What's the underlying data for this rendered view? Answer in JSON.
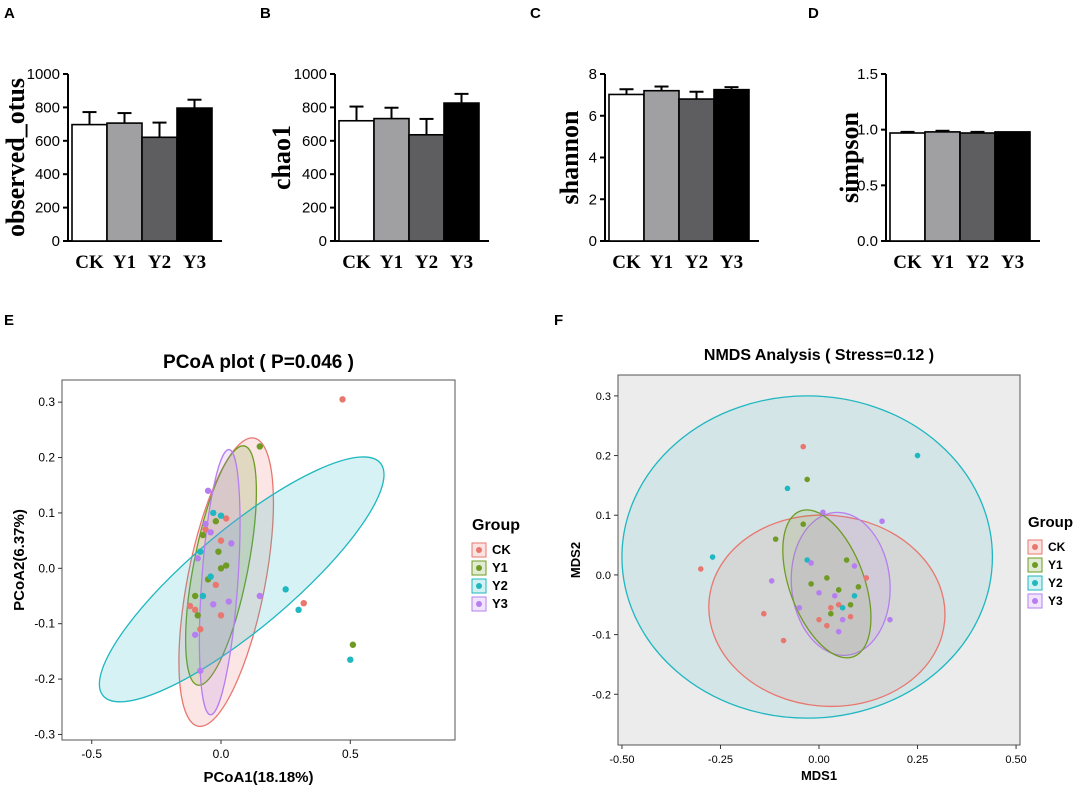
{
  "colors": {
    "CK": "#e8776f",
    "Y1": "#6f9b24",
    "Y2": "#1fb7c0",
    "Y3": "#b67ef0"
  },
  "chart_data": [
    {
      "panel": "A",
      "type": "bar",
      "ylabel": "observed_otus",
      "categories": [
        "CK",
        "Y1",
        "Y2",
        "Y3"
      ],
      "values": [
        697,
        706,
        621,
        796
      ],
      "errors": [
        75,
        60,
        88,
        50
      ],
      "fills": [
        "#ffffff",
        "#a0a0a2",
        "#5e5e60",
        "#000000"
      ],
      "ylim": [
        0,
        1000
      ],
      "yticks": [
        0,
        200,
        400,
        600,
        800,
        1000
      ],
      "yticklabels": [
        "0",
        "200",
        "400",
        "600",
        "800",
        "1000"
      ]
    },
    {
      "panel": "B",
      "type": "bar",
      "ylabel": "chao1",
      "categories": [
        "CK",
        "Y1",
        "Y2",
        "Y3"
      ],
      "values": [
        720,
        733,
        636,
        826
      ],
      "errors": [
        85,
        65,
        95,
        55
      ],
      "fills": [
        "#ffffff",
        "#a0a0a2",
        "#5e5e60",
        "#000000"
      ],
      "ylim": [
        0,
        1000
      ],
      "yticks": [
        0,
        200,
        400,
        600,
        800,
        1000
      ],
      "yticklabels": [
        "0",
        "200",
        "400",
        "600",
        "800",
        "1000"
      ]
    },
    {
      "panel": "C",
      "type": "bar",
      "ylabel": "shannon",
      "categories": [
        "CK",
        "Y1",
        "Y2",
        "Y3"
      ],
      "values": [
        7.02,
        7.2,
        6.8,
        7.25
      ],
      "errors": [
        0.25,
        0.2,
        0.35,
        0.12
      ],
      "fills": [
        "#ffffff",
        "#a0a0a2",
        "#5e5e60",
        "#000000"
      ],
      "ylim": [
        0,
        8
      ],
      "yticks": [
        0,
        2,
        4,
        6,
        8
      ],
      "yticklabels": [
        "0",
        "2",
        "4",
        "6",
        "8"
      ]
    },
    {
      "panel": "D",
      "type": "bar",
      "ylabel": "simpson",
      "categories": [
        "CK",
        "Y1",
        "Y2",
        "Y3"
      ],
      "values": [
        0.97,
        0.98,
        0.97,
        0.98
      ],
      "errors": [
        0.01,
        0.01,
        0.01,
        0.0
      ],
      "fills": [
        "#ffffff",
        "#a0a0a2",
        "#5e5e60",
        "#000000"
      ],
      "ylim": [
        0,
        1.5
      ],
      "yticks": [
        0,
        0.5,
        1.0,
        1.5
      ],
      "yticklabels": [
        "0.0",
        "0.5",
        "1.0",
        "1.5"
      ]
    },
    {
      "panel": "E",
      "type": "scatter",
      "title": "PCoA plot ( P=0.046 )",
      "xlabel": "PCoA1(18.18%)",
      "ylabel": "PCoA2(6.37%)",
      "xlim": [
        -0.615,
        0.905
      ],
      "ylim": [
        -0.31,
        0.34
      ],
      "xticks": [
        -0.5,
        0.0,
        0.5
      ],
      "xticklabels": [
        "-0.5",
        "0.0",
        "0.5"
      ],
      "yticks": [
        -0.3,
        -0.2,
        -0.1,
        0.0,
        0.1,
        0.2,
        0.3
      ],
      "yticklabels": [
        "-0.3",
        "-0.2",
        "-0.1",
        "0.0",
        "0.1",
        "0.2",
        "0.3"
      ],
      "legend_title": "Group",
      "legend": [
        "CK",
        "Y1",
        "Y2",
        "Y3"
      ],
      "ellipses": [
        {
          "group": "CK",
          "cx": 0.02,
          "cy": -0.025,
          "rx": 0.15,
          "ry": 0.265,
          "angle": -11
        },
        {
          "group": "Y1",
          "cx": 0.0,
          "cy": 0.005,
          "rx": 0.105,
          "ry": 0.22,
          "angle": -11
        },
        {
          "group": "Y2",
          "cx": 0.08,
          "cy": -0.02,
          "rx": 0.7,
          "ry": 0.09,
          "angle": 40
        },
        {
          "group": "Y3",
          "cx": -0.005,
          "cy": -0.025,
          "rx": 0.07,
          "ry": 0.24,
          "angle": -4
        }
      ],
      "series": [
        {
          "name": "CK",
          "points": [
            [
              0.47,
              0.305
            ],
            [
              0.32,
              -0.063
            ],
            [
              -0.1,
              -0.075
            ],
            [
              -0.12,
              -0.068
            ],
            [
              0.0,
              0.05
            ],
            [
              -0.02,
              -0.03
            ],
            [
              -0.06,
              0.07
            ],
            [
              0.0,
              -0.085
            ],
            [
              -0.08,
              -0.11
            ],
            [
              0.02,
              0.09
            ]
          ]
        },
        {
          "name": "Y1",
          "points": [
            [
              0.15,
              0.22
            ],
            [
              0.51,
              -0.138
            ],
            [
              -0.02,
              0.085
            ],
            [
              0.0,
              0.0
            ],
            [
              -0.05,
              -0.02
            ],
            [
              -0.1,
              -0.05
            ],
            [
              0.02,
              0.005
            ],
            [
              -0.07,
              0.06
            ],
            [
              -0.09,
              -0.085
            ],
            [
              -0.01,
              0.03
            ]
          ]
        },
        {
          "name": "Y2",
          "points": [
            [
              0.25,
              -0.038
            ],
            [
              0.3,
              -0.075
            ],
            [
              0.5,
              -0.165
            ],
            [
              -0.08,
              0.03
            ],
            [
              0.0,
              0.095
            ],
            [
              -0.04,
              -0.015
            ],
            [
              -0.07,
              -0.05
            ],
            [
              -0.03,
              0.1
            ]
          ]
        },
        {
          "name": "Y3",
          "points": [
            [
              -0.05,
              0.14
            ],
            [
              0.15,
              -0.05
            ],
            [
              -0.08,
              -0.185
            ],
            [
              -0.1,
              -0.12
            ],
            [
              0.04,
              0.045
            ],
            [
              -0.06,
              0.08
            ],
            [
              0.03,
              -0.06
            ],
            [
              -0.04,
              0.065
            ],
            [
              -0.09,
              0.018
            ],
            [
              -0.03,
              -0.065
            ]
          ]
        }
      ]
    },
    {
      "panel": "F",
      "type": "scatter",
      "title": "NMDS Analysis ( Stress=0.12 )",
      "xlabel": "MDS1",
      "ylabel": "MDS2",
      "xlim": [
        -0.51,
        0.51
      ],
      "ylim": [
        -0.285,
        0.335
      ],
      "xticks": [
        -0.5,
        -0.25,
        0.0,
        0.25,
        0.5
      ],
      "xticklabels": [
        "-0.50",
        "-0.25",
        "0.00",
        "0.25",
        "0.50"
      ],
      "yticks": [
        -0.2,
        -0.1,
        0.0,
        0.1,
        0.2,
        0.3
      ],
      "yticklabels": [
        "-0.2",
        "-0.1",
        "0.0",
        "0.1",
        "0.2",
        "0.3"
      ],
      "legend_title": "Group",
      "legend": [
        "CK",
        "Y1",
        "Y2",
        "Y3"
      ],
      "ellipses": [
        {
          "group": "Y2",
          "cx": -0.03,
          "cy": 0.03,
          "rx": 0.47,
          "ry": 0.27,
          "angle": 0
        },
        {
          "group": "CK",
          "cx": 0.02,
          "cy": -0.06,
          "rx": 0.3,
          "ry": 0.16,
          "angle": -5
        },
        {
          "group": "Y3",
          "cx": 0.055,
          "cy": -0.015,
          "rx": 0.125,
          "ry": 0.12,
          "angle": 5
        },
        {
          "group": "Y1",
          "cx": 0.02,
          "cy": -0.015,
          "rx": 0.095,
          "ry": 0.13,
          "angle": 20
        }
      ],
      "series": [
        {
          "name": "CK",
          "points": [
            [
              -0.3,
              0.01
            ],
            [
              -0.04,
              0.215
            ],
            [
              -0.09,
              -0.11
            ],
            [
              -0.14,
              -0.065
            ],
            [
              0.12,
              -0.005
            ],
            [
              0.02,
              -0.085
            ],
            [
              0.05,
              -0.05
            ],
            [
              0.08,
              -0.07
            ],
            [
              0.0,
              -0.075
            ],
            [
              0.03,
              -0.055
            ]
          ]
        },
        {
          "name": "Y1",
          "points": [
            [
              -0.03,
              0.16
            ],
            [
              -0.04,
              0.085
            ],
            [
              -0.11,
              0.06
            ],
            [
              0.03,
              -0.065
            ],
            [
              -0.02,
              -0.015
            ],
            [
              0.08,
              -0.05
            ],
            [
              0.05,
              -0.025
            ],
            [
              0.1,
              -0.02
            ],
            [
              0.02,
              -0.005
            ],
            [
              0.07,
              0.025
            ]
          ]
        },
        {
          "name": "Y2",
          "points": [
            [
              -0.27,
              0.03
            ],
            [
              0.25,
              0.2
            ],
            [
              -0.08,
              0.145
            ],
            [
              -0.03,
              0.025
            ],
            [
              0.09,
              -0.035
            ],
            [
              0.06,
              -0.055
            ]
          ]
        },
        {
          "name": "Y3",
          "points": [
            [
              0.01,
              0.105
            ],
            [
              0.16,
              0.09
            ],
            [
              -0.12,
              -0.01
            ],
            [
              0.18,
              -0.075
            ],
            [
              -0.05,
              -0.055
            ],
            [
              0.06,
              -0.075
            ],
            [
              0.04,
              -0.035
            ],
            [
              0.0,
              -0.03
            ],
            [
              0.09,
              0.015
            ],
            [
              0.05,
              -0.095
            ],
            [
              -0.02,
              0.02
            ]
          ]
        }
      ]
    }
  ]
}
